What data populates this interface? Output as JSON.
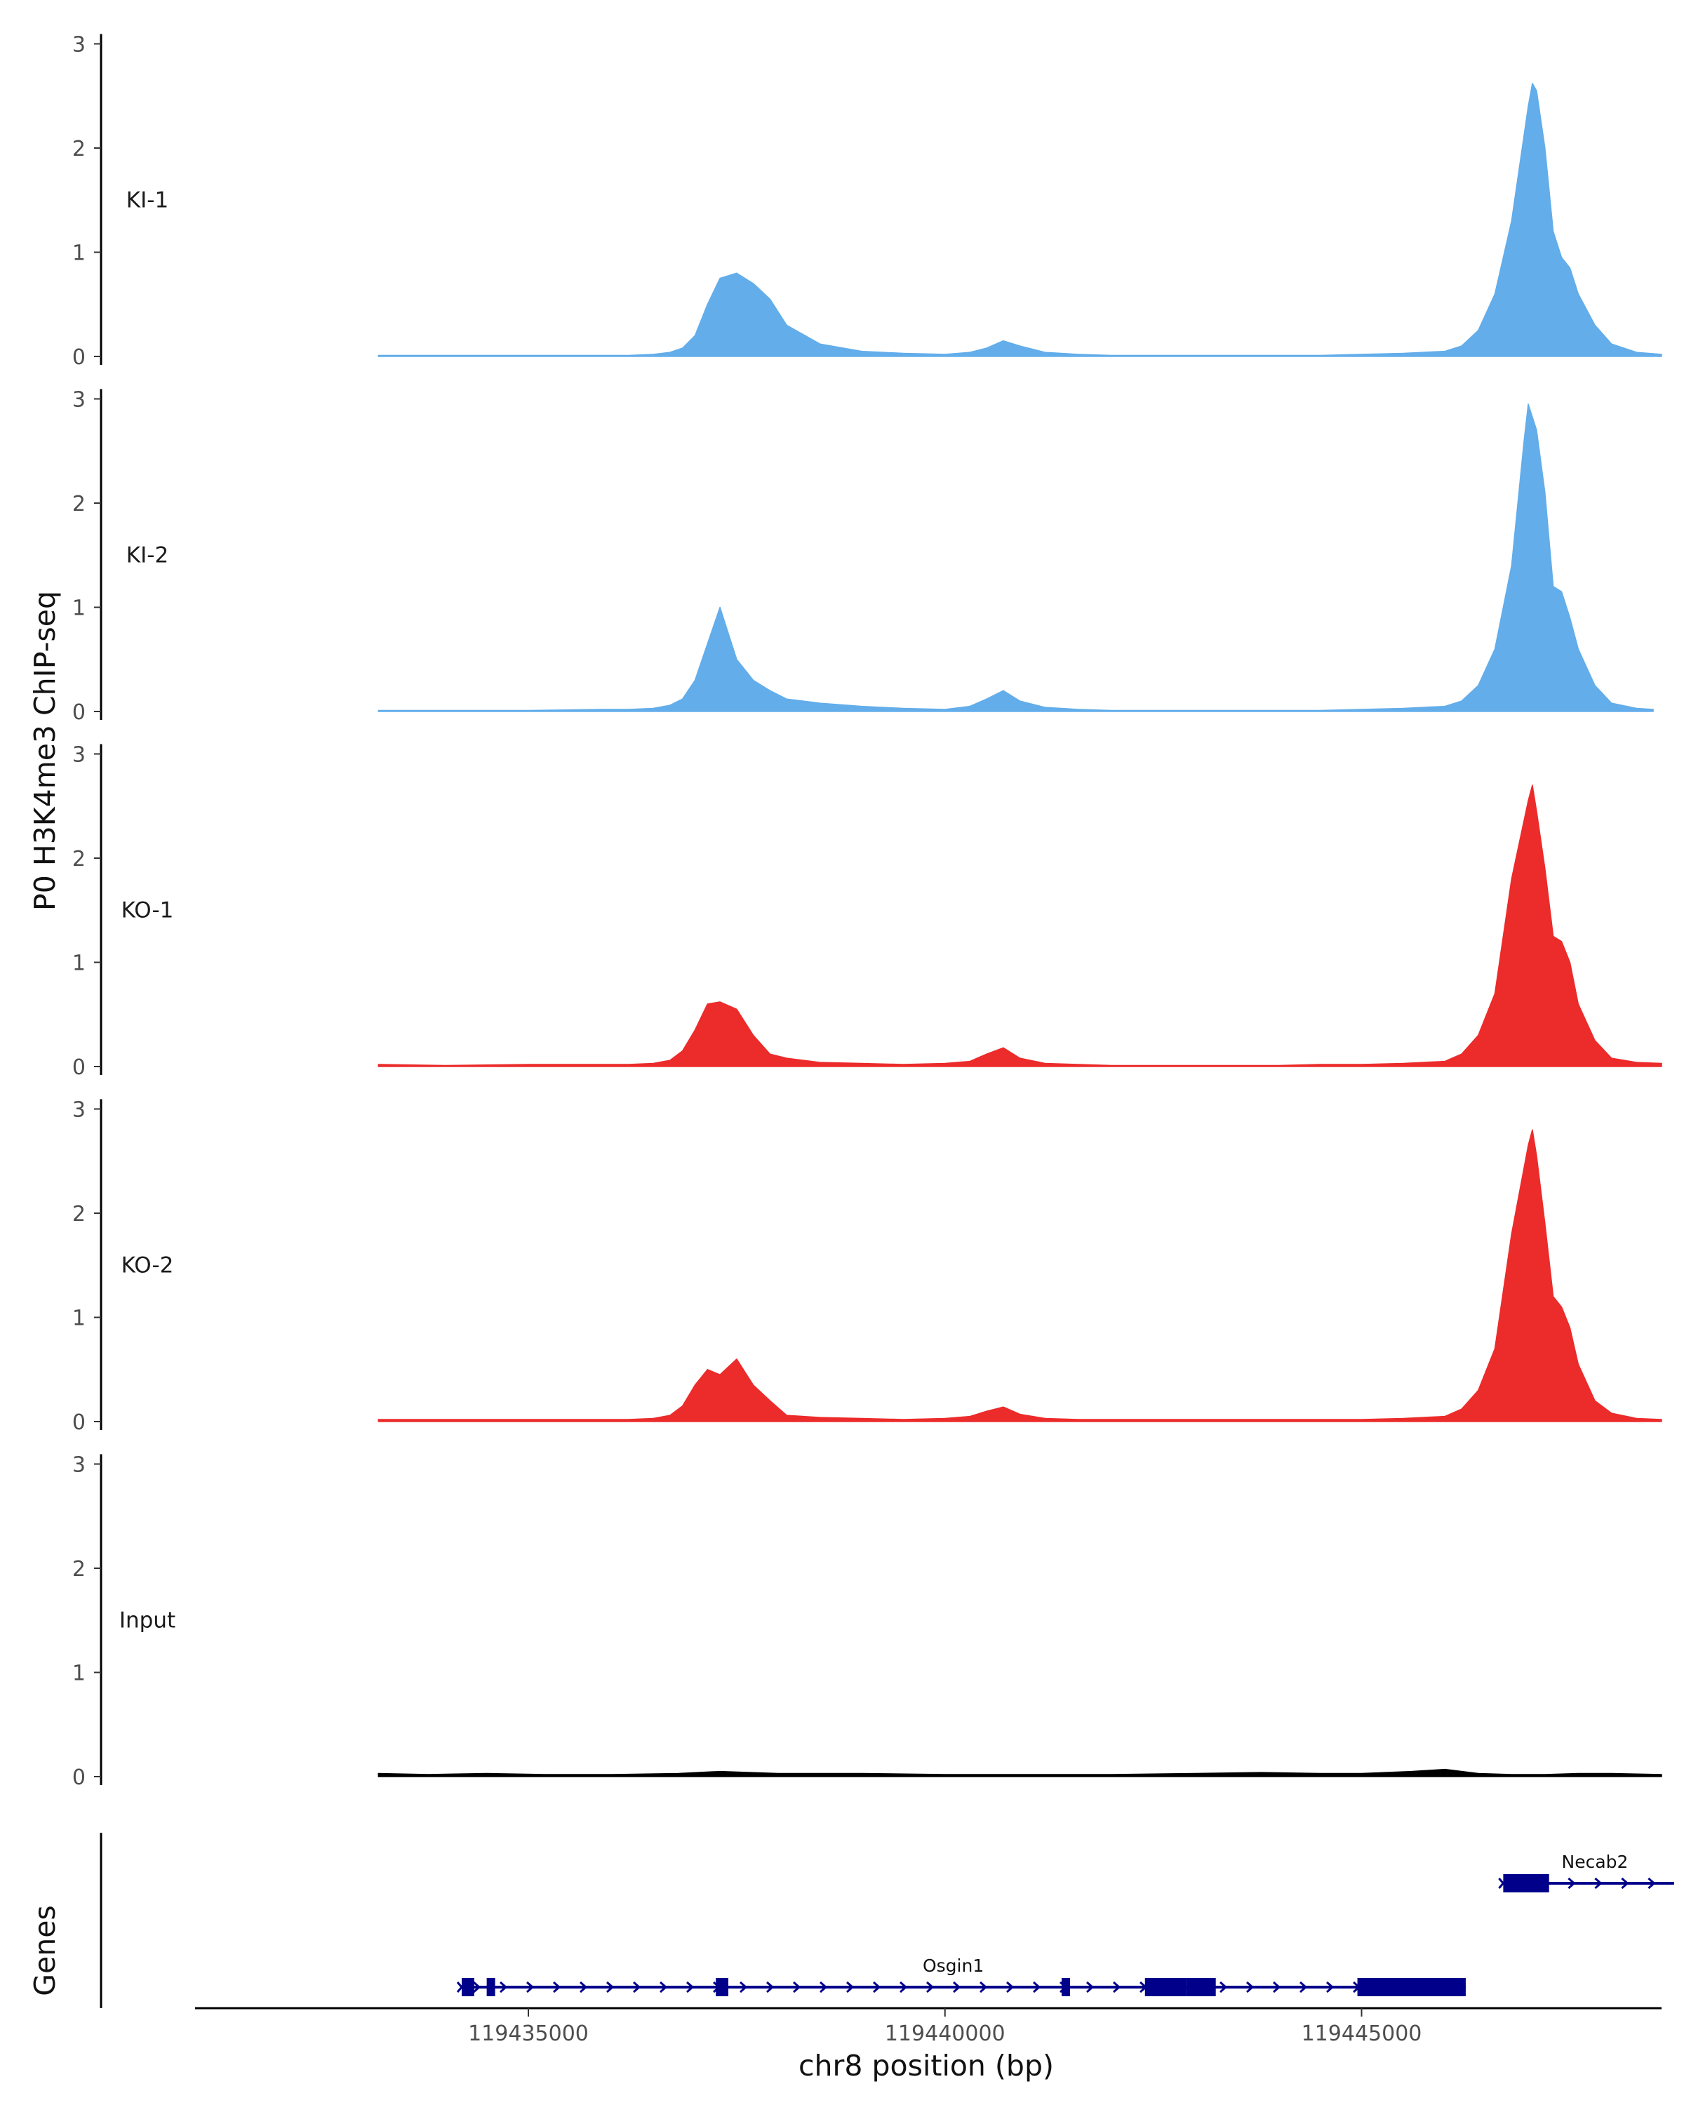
{
  "chart_data": {
    "type": "area",
    "ylabel": "P0 H3K4me3 ChIP-seq",
    "xlabel": "chr8 position (bp)",
    "xlim": [
      119431000,
      119448600
    ],
    "ylim": [
      0,
      3
    ],
    "y_ticks": [
      0,
      1,
      2,
      3
    ],
    "x_ticks": [
      119435000,
      119440000,
      119445000
    ],
    "x_tick_labels": [
      "119435000",
      "119440000",
      "119445000"
    ],
    "series": [
      {
        "name": "KI-1",
        "color": "#62adea",
        "x": [
          119433200,
          119434000,
          119435000,
          119435900,
          119436200,
          119436500,
          119436700,
          119436850,
          119437000,
          119437150,
          119437300,
          119437500,
          119437700,
          119437900,
          119438100,
          119438500,
          119439000,
          119439500,
          119440000,
          119440300,
          119440500,
          119440700,
          119440900,
          119441200,
          119441600,
          119442000,
          119442500,
          119443000,
          119443500,
          119444000,
          119444500,
          119445000,
          119445500,
          119446000,
          119446200,
          119446400,
          119446600,
          119446800,
          119447000,
          119447050,
          119447100,
          119447200,
          119447300,
          119447400,
          119447500,
          119447600,
          119447800,
          119448000,
          119448300,
          119448600
        ],
        "values": [
          0.01,
          0.01,
          0.01,
          0.01,
          0.01,
          0.02,
          0.04,
          0.08,
          0.2,
          0.5,
          0.75,
          0.8,
          0.7,
          0.55,
          0.3,
          0.12,
          0.05,
          0.03,
          0.02,
          0.04,
          0.08,
          0.15,
          0.1,
          0.04,
          0.02,
          0.01,
          0.01,
          0.01,
          0.01,
          0.01,
          0.01,
          0.02,
          0.03,
          0.05,
          0.1,
          0.25,
          0.6,
          1.3,
          2.4,
          2.62,
          2.55,
          2.0,
          1.2,
          0.95,
          0.85,
          0.6,
          0.3,
          0.12,
          0.04,
          0.02
        ]
      },
      {
        "name": "KI-2",
        "color": "#62adea",
        "x": [
          119433200,
          119434000,
          119435000,
          119435900,
          119436200,
          119436500,
          119436700,
          119436850,
          119437000,
          119437150,
          119437300,
          119437500,
          119437700,
          119437900,
          119438100,
          119438500,
          119439000,
          119439500,
          119440000,
          119440300,
          119440500,
          119440700,
          119440900,
          119441200,
          119441600,
          119442000,
          119442500,
          119443000,
          119443500,
          119444000,
          119444500,
          119445000,
          119445500,
          119446000,
          119446200,
          119446400,
          119446600,
          119446800,
          119446950,
          119447000,
          119447100,
          119447200,
          119447300,
          119447400,
          119447500,
          119447600,
          119447800,
          119448000,
          119448300,
          119448500
        ],
        "values": [
          0.01,
          0.01,
          0.01,
          0.02,
          0.02,
          0.03,
          0.06,
          0.12,
          0.3,
          0.65,
          1.0,
          0.5,
          0.3,
          0.2,
          0.12,
          0.08,
          0.05,
          0.03,
          0.02,
          0.05,
          0.12,
          0.2,
          0.1,
          0.04,
          0.02,
          0.01,
          0.01,
          0.01,
          0.01,
          0.01,
          0.01,
          0.02,
          0.03,
          0.05,
          0.1,
          0.25,
          0.6,
          1.4,
          2.6,
          2.95,
          2.7,
          2.1,
          1.2,
          1.15,
          0.9,
          0.6,
          0.25,
          0.08,
          0.03,
          0.02
        ]
      },
      {
        "name": "KO-1",
        "color": "#ec2b2b",
        "x": [
          119433200,
          119434000,
          119435000,
          119435900,
          119436200,
          119436500,
          119436700,
          119436850,
          119437000,
          119437150,
          119437300,
          119437500,
          119437700,
          119437900,
          119438100,
          119438500,
          119439000,
          119439500,
          119440000,
          119440300,
          119440500,
          119440700,
          119440900,
          119441200,
          119441600,
          119442000,
          119442500,
          119443000,
          119443500,
          119444000,
          119444500,
          119445000,
          119445500,
          119446000,
          119446200,
          119446400,
          119446600,
          119446800,
          119447000,
          119447050,
          119447100,
          119447200,
          119447300,
          119447400,
          119447500,
          119447600,
          119447800,
          119448000,
          119448300,
          119448600
        ],
        "values": [
          0.02,
          0.01,
          0.02,
          0.02,
          0.02,
          0.03,
          0.06,
          0.15,
          0.35,
          0.6,
          0.62,
          0.55,
          0.3,
          0.12,
          0.08,
          0.04,
          0.03,
          0.02,
          0.03,
          0.05,
          0.12,
          0.18,
          0.08,
          0.03,
          0.02,
          0.01,
          0.01,
          0.01,
          0.01,
          0.01,
          0.02,
          0.02,
          0.03,
          0.05,
          0.12,
          0.3,
          0.7,
          1.8,
          2.55,
          2.7,
          2.45,
          1.9,
          1.25,
          1.2,
          1.0,
          0.6,
          0.25,
          0.08,
          0.04,
          0.03
        ]
      },
      {
        "name": "KO-2",
        "color": "#ec2b2b",
        "x": [
          119433200,
          119434000,
          119435000,
          119435900,
          119436200,
          119436500,
          119436700,
          119436850,
          119437000,
          119437150,
          119437300,
          119437500,
          119437700,
          119437900,
          119438100,
          119438500,
          119439000,
          119439500,
          119440000,
          119440300,
          119440500,
          119440700,
          119440900,
          119441200,
          119441600,
          119442000,
          119442500,
          119443000,
          119443500,
          119444000,
          119444500,
          119445000,
          119445500,
          119446000,
          119446200,
          119446400,
          119446600,
          119446800,
          119447000,
          119447050,
          119447100,
          119447200,
          119447300,
          119447400,
          119447500,
          119447600,
          119447800,
          119448000,
          119448300,
          119448600
        ],
        "values": [
          0.02,
          0.02,
          0.02,
          0.02,
          0.02,
          0.03,
          0.06,
          0.15,
          0.35,
          0.5,
          0.45,
          0.6,
          0.35,
          0.2,
          0.06,
          0.04,
          0.03,
          0.02,
          0.03,
          0.05,
          0.1,
          0.14,
          0.07,
          0.03,
          0.02,
          0.02,
          0.02,
          0.02,
          0.02,
          0.02,
          0.02,
          0.02,
          0.03,
          0.05,
          0.12,
          0.3,
          0.7,
          1.8,
          2.65,
          2.8,
          2.55,
          1.9,
          1.2,
          1.1,
          0.9,
          0.55,
          0.2,
          0.08,
          0.03,
          0.02
        ]
      },
      {
        "name": "Input",
        "color": "#000000",
        "x": [
          119433200,
          119433800,
          119434500,
          119435200,
          119436000,
          119436800,
          119437300,
          119438000,
          119439000,
          119440000,
          119441000,
          119442000,
          119443000,
          119443800,
          119444500,
          119445000,
          119445600,
          119446000,
          119446400,
          119446800,
          119447200,
          119447600,
          119448000,
          119448600
        ],
        "values": [
          0.03,
          0.02,
          0.03,
          0.02,
          0.02,
          0.03,
          0.05,
          0.03,
          0.03,
          0.02,
          0.02,
          0.02,
          0.03,
          0.04,
          0.03,
          0.03,
          0.05,
          0.07,
          0.03,
          0.02,
          0.02,
          0.03,
          0.03,
          0.02
        ]
      }
    ],
    "genes_label": "Genes",
    "genes": [
      {
        "name": "Necab2",
        "start": 119446700,
        "end": 119448750,
        "exons": [
          [
            119446700,
            119446750
          ],
          [
            119446750,
            119447250
          ]
        ]
      },
      {
        "name": "Osgin1",
        "start": 119434200,
        "end": 119446250,
        "exons": [
          [
            119434200,
            119434350
          ],
          [
            119434500,
            119434600
          ],
          [
            119437250,
            119437400
          ],
          [
            119441400,
            119441500
          ],
          [
            119442400,
            119442900
          ],
          [
            119442900,
            119443250
          ],
          [
            119444950,
            119446250
          ]
        ]
      }
    ]
  }
}
